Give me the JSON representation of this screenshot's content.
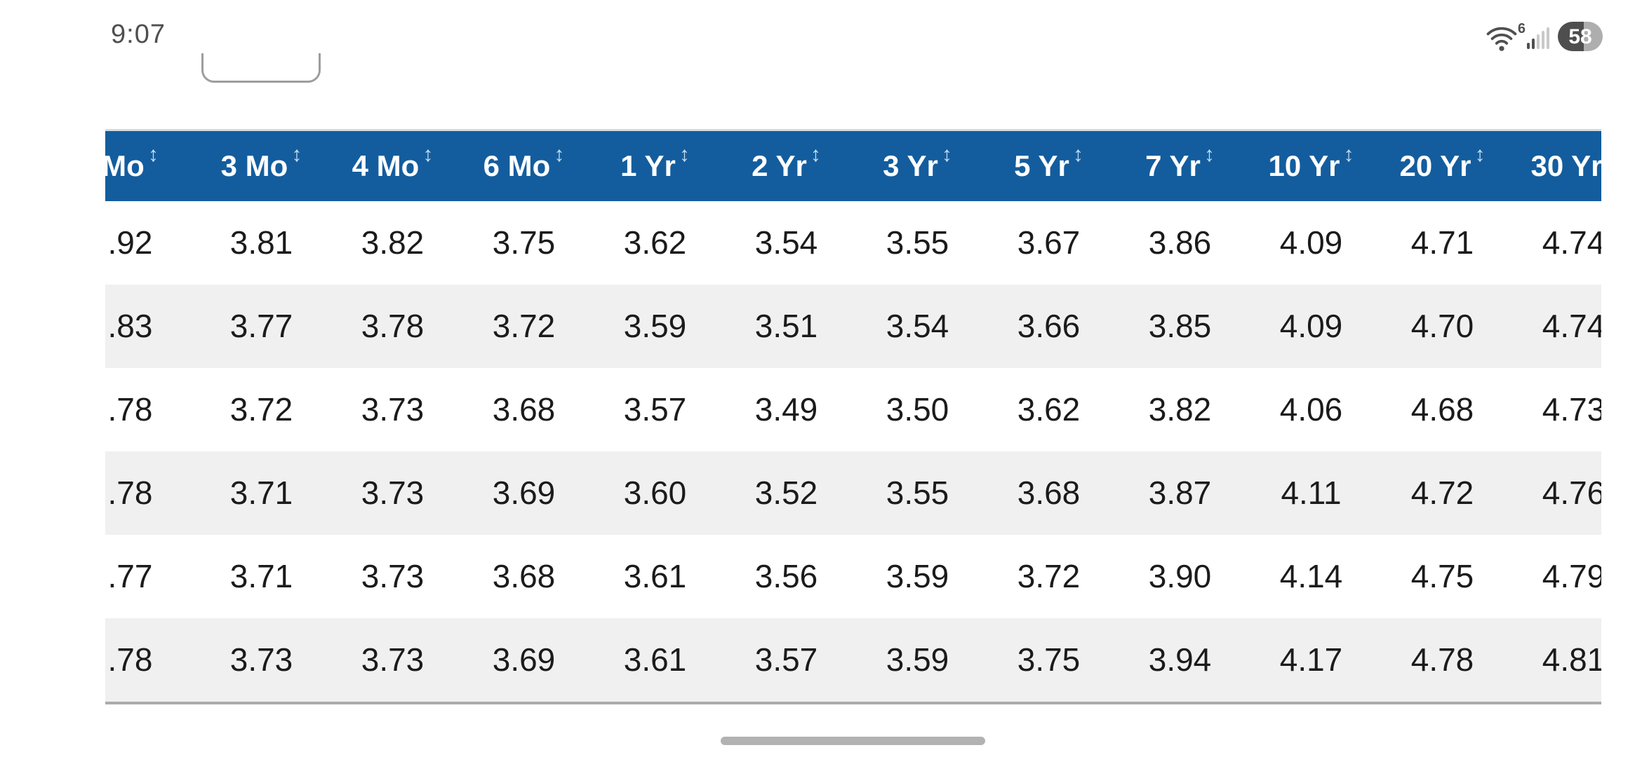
{
  "status_bar": {
    "time": "9:07",
    "wifi_generation": "6",
    "battery_level": "58"
  },
  "table": {
    "sort_indicator": "↕",
    "columns": [
      "Mo",
      "3 Mo",
      "4 Mo",
      "6 Mo",
      "1 Yr",
      "2 Yr",
      "3 Yr",
      "5 Yr",
      "7 Yr",
      "10 Yr",
      "20 Yr",
      "30 Yr"
    ],
    "rows": [
      [
        ".92",
        "3.81",
        "3.82",
        "3.75",
        "3.62",
        "3.54",
        "3.55",
        "3.67",
        "3.86",
        "4.09",
        "4.71",
        "4.74"
      ],
      [
        ".83",
        "3.77",
        "3.78",
        "3.72",
        "3.59",
        "3.51",
        "3.54",
        "3.66",
        "3.85",
        "4.09",
        "4.70",
        "4.74"
      ],
      [
        ".78",
        "3.72",
        "3.73",
        "3.68",
        "3.57",
        "3.49",
        "3.50",
        "3.62",
        "3.82",
        "4.06",
        "4.68",
        "4.73"
      ],
      [
        ".78",
        "3.71",
        "3.73",
        "3.69",
        "3.60",
        "3.52",
        "3.55",
        "3.68",
        "3.87",
        "4.11",
        "4.72",
        "4.76"
      ],
      [
        ".77",
        "3.71",
        "3.73",
        "3.68",
        "3.61",
        "3.56",
        "3.59",
        "3.72",
        "3.90",
        "4.14",
        "4.75",
        "4.79"
      ],
      [
        ".78",
        "3.73",
        "3.73",
        "3.69",
        "3.61",
        "3.57",
        "3.59",
        "3.75",
        "3.94",
        "4.17",
        "4.78",
        "4.81"
      ]
    ]
  },
  "colors": {
    "header_bg": "#135d9e",
    "header_text": "#ffffff",
    "row_alt_bg": "#f0f0f0",
    "body_text": "#1b1b1b",
    "status_text": "#4f4f4f",
    "battery_fill": "#4e4e4e",
    "battery_empty": "#aeaeae",
    "scroll_indicator": "#b2b2b2"
  }
}
